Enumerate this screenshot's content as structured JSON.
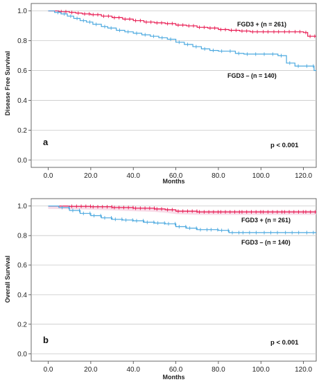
{
  "chart_data": [
    {
      "type": "line",
      "panel_label": "a",
      "xlabel": "Months",
      "ylabel": "Disease Free Survival",
      "xlim": [
        -8,
        126
      ],
      "ylim": [
        -0.05,
        1.05
      ],
      "xticks": [
        "0.0",
        "20.0",
        "40.0",
        "60.0",
        "80.0",
        "100.0",
        "120.0"
      ],
      "yticks": [
        "0.0",
        "0.2",
        "0.4",
        "0.6",
        "0.8",
        "1.0"
      ],
      "grid": "horizontal",
      "p_value": "p < 0.001",
      "series": [
        {
          "name": "FGD3 + (n = 261)",
          "color": "#e8174f",
          "x": [
            0,
            5,
            10,
            13,
            16,
            20,
            25,
            30,
            35,
            40,
            45,
            50,
            55,
            60,
            65,
            70,
            75,
            80,
            85,
            90,
            95,
            100,
            105,
            110,
            115,
            120,
            122,
            126
          ],
          "y": [
            1.0,
            0.995,
            0.99,
            0.985,
            0.98,
            0.975,
            0.965,
            0.955,
            0.945,
            0.935,
            0.925,
            0.92,
            0.915,
            0.905,
            0.9,
            0.89,
            0.885,
            0.875,
            0.87,
            0.865,
            0.86,
            0.86,
            0.86,
            0.86,
            0.86,
            0.855,
            0.83,
            0.83
          ]
        },
        {
          "name": "FGD3 – (n = 140)",
          "color": "#4aa8df",
          "x": [
            0,
            3,
            6,
            9,
            12,
            15,
            18,
            21,
            25,
            28,
            32,
            36,
            40,
            44,
            48,
            52,
            56,
            60,
            64,
            68,
            72,
            76,
            80,
            84,
            88,
            92,
            96,
            100,
            104,
            108,
            112,
            116,
            120,
            125,
            126
          ],
          "y": [
            1.0,
            0.99,
            0.98,
            0.965,
            0.95,
            0.935,
            0.925,
            0.91,
            0.895,
            0.885,
            0.87,
            0.86,
            0.85,
            0.84,
            0.83,
            0.82,
            0.81,
            0.79,
            0.775,
            0.76,
            0.745,
            0.735,
            0.73,
            0.73,
            0.715,
            0.71,
            0.71,
            0.71,
            0.71,
            0.7,
            0.65,
            0.63,
            0.63,
            0.6,
            0.6
          ]
        }
      ]
    },
    {
      "type": "line",
      "panel_label": "b",
      "xlabel": "Months",
      "ylabel": "Overall Survival",
      "xlim": [
        -8,
        126
      ],
      "ylim": [
        -0.05,
        1.05
      ],
      "xticks": [
        "0.0",
        "20.0",
        "40.0",
        "60.0",
        "80.0",
        "100.0",
        "120.0"
      ],
      "yticks": [
        "0.0",
        "0.2",
        "0.4",
        "0.6",
        "0.8",
        "1.0"
      ],
      "grid": "horizontal",
      "p_value": "p < 0.001",
      "series": [
        {
          "name": "FGD3 + (n = 261)",
          "color": "#e8174f",
          "x": [
            0,
            10,
            20,
            30,
            40,
            50,
            55,
            60,
            70,
            80,
            90,
            100,
            110,
            120,
            126
          ],
          "y": [
            1.0,
            0.998,
            0.995,
            0.99,
            0.985,
            0.98,
            0.975,
            0.965,
            0.96,
            0.96,
            0.96,
            0.96,
            0.96,
            0.96,
            0.96
          ]
        },
        {
          "name": "FGD3 – (n = 140)",
          "color": "#4aa8df",
          "x": [
            0,
            5,
            10,
            15,
            20,
            25,
            30,
            35,
            40,
            45,
            50,
            55,
            60,
            65,
            70,
            75,
            80,
            85,
            90,
            100,
            110,
            120,
            126
          ],
          "y": [
            1.0,
            0.99,
            0.97,
            0.95,
            0.935,
            0.92,
            0.91,
            0.905,
            0.9,
            0.89,
            0.885,
            0.88,
            0.86,
            0.85,
            0.84,
            0.84,
            0.835,
            0.82,
            0.82,
            0.82,
            0.82,
            0.82,
            0.82
          ]
        }
      ]
    }
  ]
}
